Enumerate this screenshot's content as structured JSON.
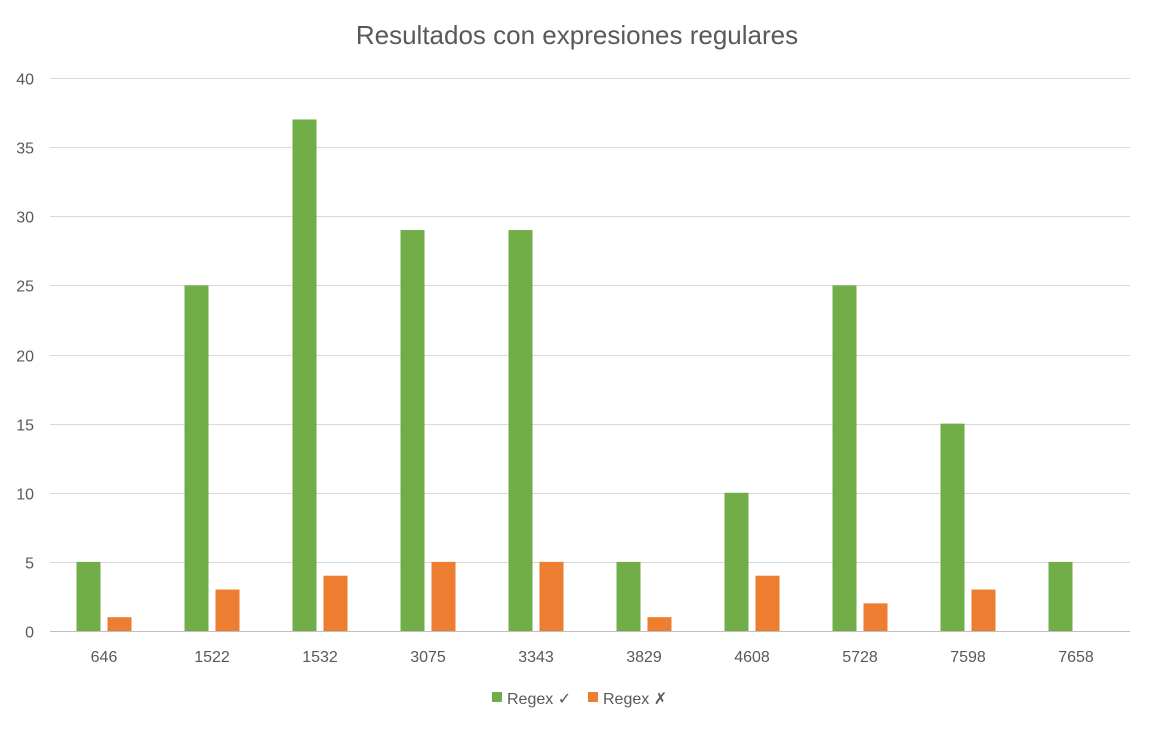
{
  "chart_data": {
    "type": "bar",
    "title": "Resultados con expresiones regulares",
    "xlabel": "",
    "ylabel": "",
    "categories": [
      "646",
      "1522",
      "1532",
      "3075",
      "3343",
      "3829",
      "4608",
      "5728",
      "7598",
      "7658"
    ],
    "series": [
      {
        "name": "Regex ✓",
        "color": "#70ad47",
        "values": [
          5,
          25,
          37,
          29,
          29,
          5,
          10,
          25,
          15,
          5
        ]
      },
      {
        "name": "Regex ✗",
        "color": "#ed7d31",
        "values": [
          1,
          3,
          4,
          5,
          5,
          1,
          4,
          2,
          3,
          0
        ]
      }
    ],
    "ylim": [
      0,
      40
    ],
    "yticks": [
      0,
      5,
      10,
      15,
      20,
      25,
      30,
      35,
      40
    ],
    "grid": true,
    "legend_position": "bottom"
  }
}
